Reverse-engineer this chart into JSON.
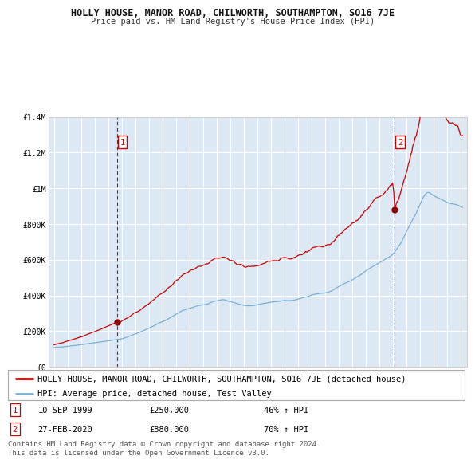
{
  "title": "HOLLY HOUSE, MANOR ROAD, CHILWORTH, SOUTHAMPTON, SO16 7JE",
  "subtitle": "Price paid vs. HM Land Registry's House Price Index (HPI)",
  "background_color": "#dce9f5",
  "outer_bg_color": "#ffffff",
  "red_line_color": "#cc0000",
  "blue_line_color": "#7ab0d4",
  "dashed_line_color": "#cc0000",
  "ylim": [
    0,
    1400000
  ],
  "yticks": [
    0,
    200000,
    400000,
    600000,
    800000,
    1000000,
    1200000,
    1400000
  ],
  "ytick_labels": [
    "£0",
    "£200K",
    "£400K",
    "£600K",
    "£800K",
    "£1M",
    "£1.2M",
    "£1.4M"
  ],
  "xstart_year": 1995,
  "xend_year": 2025,
  "sale1_date": "10-SEP-1999",
  "sale1_price": 250000,
  "sale1_pct": "46% ↑ HPI",
  "sale1_year": 1999.7,
  "sale2_date": "27-FEB-2020",
  "sale2_price": 880000,
  "sale2_pct": "70% ↑ HPI",
  "sale2_year": 2020.15,
  "legend_label_red": "HOLLY HOUSE, MANOR ROAD, CHILWORTH, SOUTHAMPTON, SO16 7JE (detached house)",
  "legend_label_blue": "HPI: Average price, detached house, Test Valley",
  "footnote": "Contains HM Land Registry data © Crown copyright and database right 2024.\nThis data is licensed under the Open Government Licence v3.0.",
  "grid_color": "#ffffff",
  "title_fontsize": 8.5,
  "subtitle_fontsize": 7.5,
  "tick_fontsize": 7,
  "legend_fontsize": 7.5,
  "footnote_fontsize": 6.5
}
